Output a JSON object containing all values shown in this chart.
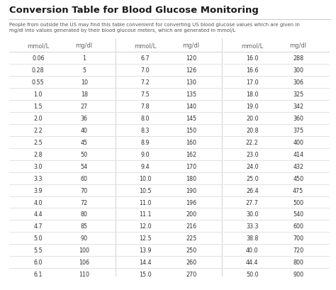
{
  "title": "Conversion Table for Blood Glucose Monitoring",
  "subtitle": "People from outside the US may find this table convenient for converting US blood glucose values which are given in\nmg/dl into values generated by their blood glucose meters, which are generated in mmol/L",
  "col1_mmol": [
    "0.06",
    "0.28",
    "0.55",
    "1.0",
    "1.5",
    "2.0",
    "2.2",
    "2.5",
    "2.8",
    "3.0",
    "3.3",
    "3.9",
    "4.0",
    "4.4",
    "4.7",
    "5.0",
    "5.5",
    "6.0",
    "6.1"
  ],
  "col1_mgdl": [
    "1",
    "5",
    "10",
    "18",
    "27",
    "36",
    "40",
    "45",
    "50",
    "54",
    "60",
    "70",
    "72",
    "80",
    "85",
    "90",
    "100",
    "106",
    "110"
  ],
  "col2_mmol": [
    "6.7",
    "7.0",
    "7.2",
    "7.5",
    "7.8",
    "8.0",
    "8.3",
    "8.9",
    "9.0",
    "9.4",
    "10.0",
    "10.5",
    "11.0",
    "11.1",
    "12.0",
    "12.5",
    "13.9",
    "14.4",
    "15.0"
  ],
  "col2_mgdl": [
    "120",
    "126",
    "130",
    "135",
    "140",
    "145",
    "150",
    "160",
    "162",
    "170",
    "180",
    "190",
    "196",
    "200",
    "216",
    "225",
    "250",
    "260",
    "270"
  ],
  "col3_mmol": [
    "16.0",
    "16.6",
    "17.0",
    "18.0",
    "19.0",
    "20.0",
    "20.8",
    "22.2",
    "23.0",
    "24.0",
    "25.0",
    "26.4",
    "27.7",
    "30.0",
    "33.3",
    "38.8",
    "40.0",
    "44.4",
    "50.0"
  ],
  "col3_mgdl": [
    "288",
    "300",
    "306",
    "325",
    "342",
    "360",
    "375",
    "400",
    "414",
    "432",
    "450",
    "475",
    "500",
    "540",
    "600",
    "700",
    "720",
    "800",
    "900"
  ],
  "bg_color": "#ffffff",
  "title_color": "#1a1a1a",
  "header_color": "#666666",
  "text_color": "#333333",
  "line_color": "#cccccc",
  "subtitle_color": "#555555",
  "title_fontsize": 9.5,
  "subtitle_fontsize": 5.0,
  "header_fontsize": 6.0,
  "data_fontsize": 5.8,
  "fig_width": 4.74,
  "fig_height": 4.1,
  "fig_dpi": 100
}
